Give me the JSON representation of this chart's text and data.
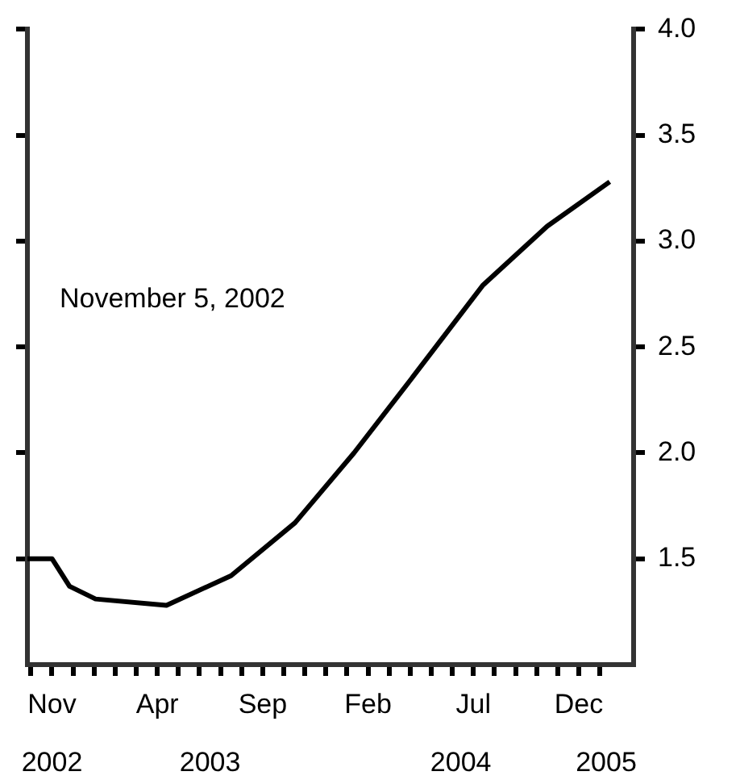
{
  "chart_data": {
    "type": "line",
    "annotations": [
      "November 5, 2002"
    ],
    "x": [
      "2002-09-26",
      "2002-11-01",
      "2002-11-26",
      "2003-01-03",
      "2003-04-14",
      "2003-07-16",
      "2003-10-17",
      "2004-01-11",
      "2004-04-05",
      "2004-07-14",
      "2004-10-16",
      "2005-01-15"
    ],
    "series": [
      {
        "color": "#000000",
        "values": [
          1.5,
          1.5,
          1.37,
          1.31,
          1.28,
          1.42,
          1.67,
          2.0,
          2.36,
          2.79,
          3.07,
          3.28
        ]
      }
    ],
    "xlim": [
      "2002-09-26",
      "2005-02-19"
    ],
    "xticks": [
      {
        "value": "2002-10",
        "label": null
      },
      {
        "value": "2002-11",
        "label": "Nov"
      },
      {
        "value": "2002-12",
        "label": null
      },
      {
        "value": "2003-01",
        "label": null
      },
      {
        "value": "2003-02",
        "label": null
      },
      {
        "value": "2003-03",
        "label": null
      },
      {
        "value": "2003-04",
        "label": "Apr"
      },
      {
        "value": "2003-05",
        "label": null
      },
      {
        "value": "2003-06",
        "label": null
      },
      {
        "value": "2003-07",
        "label": null
      },
      {
        "value": "2003-08",
        "label": null
      },
      {
        "value": "2003-09",
        "label": "Sep"
      },
      {
        "value": "2003-10",
        "label": null
      },
      {
        "value": "2003-11",
        "label": null
      },
      {
        "value": "2003-12",
        "label": null
      },
      {
        "value": "2004-01",
        "label": null
      },
      {
        "value": "2004-02",
        "label": "Feb"
      },
      {
        "value": "2004-03",
        "label": null
      },
      {
        "value": "2004-04",
        "label": null
      },
      {
        "value": "2004-05",
        "label": null
      },
      {
        "value": "2004-06",
        "label": null
      },
      {
        "value": "2004-07",
        "label": "Jul"
      },
      {
        "value": "2004-08",
        "label": null
      },
      {
        "value": "2004-09",
        "label": null
      },
      {
        "value": "2004-10",
        "label": null
      },
      {
        "value": "2004-11",
        "label": null
      },
      {
        "value": "2004-12",
        "label": "Dec"
      },
      {
        "value": "2005-01",
        "label": null
      }
    ],
    "x2lim": [
      "2002-09-26",
      "2005-02-19"
    ],
    "x2ticks": [
      {
        "value": "2002-11",
        "label": "2002"
      },
      {
        "value": "2003-06-16",
        "label": "2003"
      },
      {
        "value": "2004-06-13",
        "label": "2004"
      },
      {
        "value": "2005-01-10",
        "label": "2005"
      }
    ],
    "ylim": [
      1.0,
      4.0
    ],
    "yticks": [
      1.5,
      {
        "value": 2.0,
        "label": "2.0"
      },
      2.5,
      {
        "value": 3.0,
        "label": "3.0"
      },
      3.5,
      {
        "value": 4.0,
        "label": "4.0"
      }
    ]
  }
}
